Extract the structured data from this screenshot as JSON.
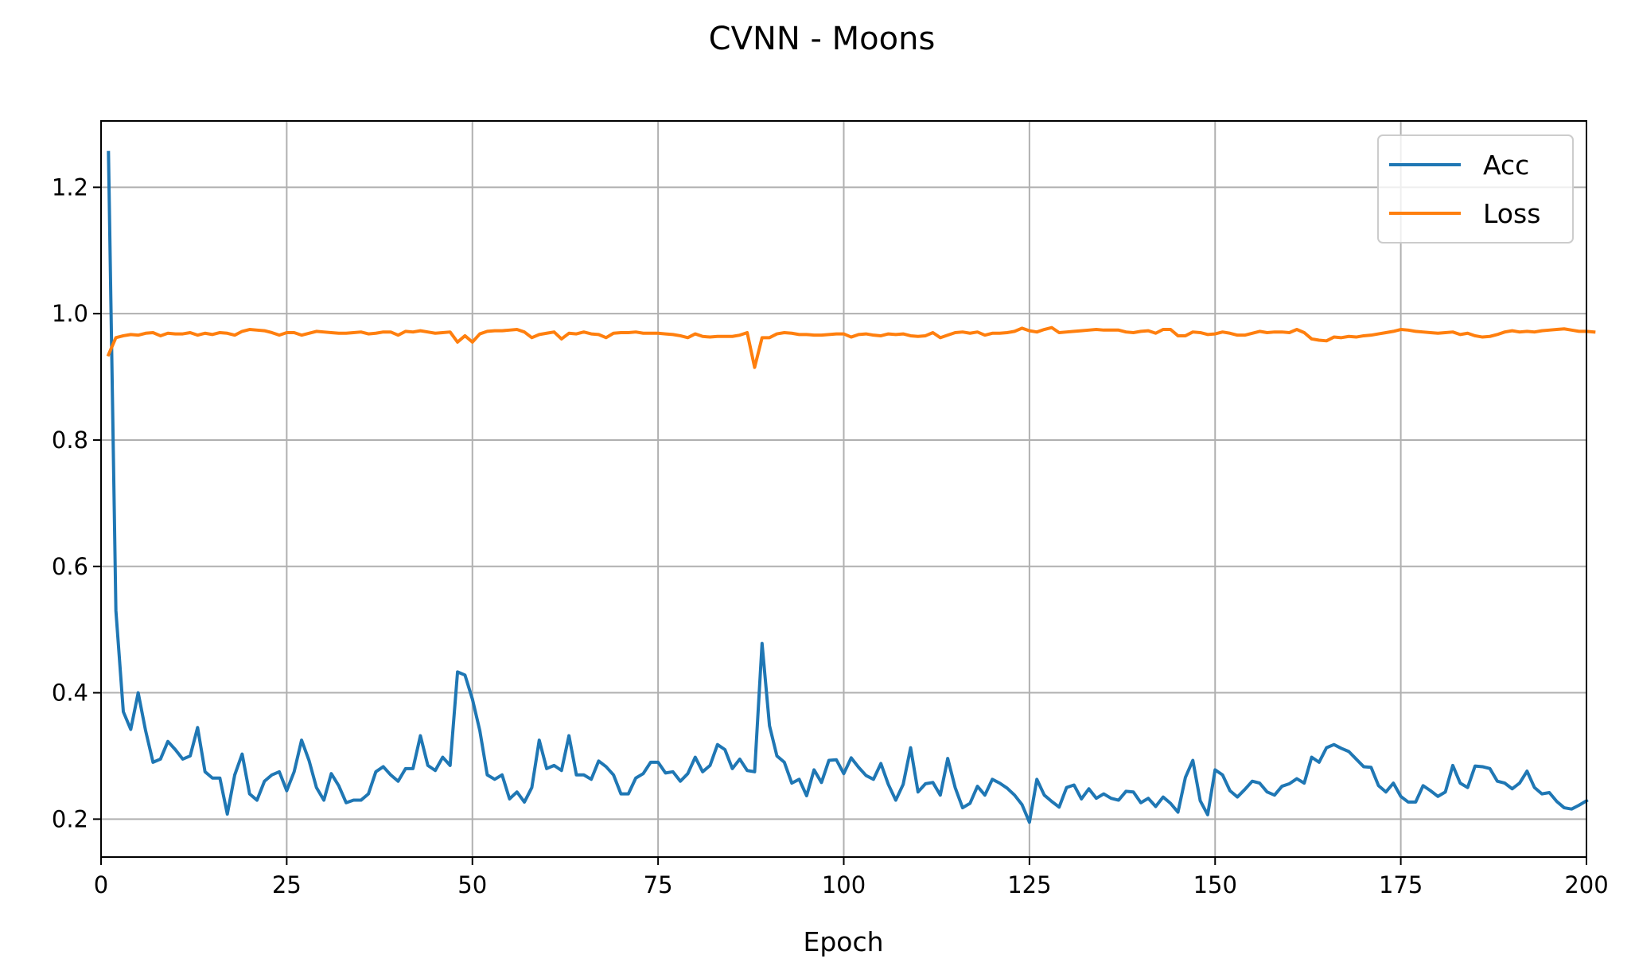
{
  "chart_data": {
    "type": "line",
    "title": "CVNN - Moons",
    "xlabel": "Epoch",
    "ylabel": "",
    "xlim": [
      0,
      200
    ],
    "ylim": [
      0.14,
      1.305
    ],
    "xticks": [
      0,
      25,
      50,
      75,
      100,
      125,
      150,
      175,
      200
    ],
    "yticks": [
      0.2,
      0.4,
      0.6,
      0.8,
      1.0,
      1.2
    ],
    "ytick_labels": [
      "0.2",
      "0.4",
      "0.6",
      "0.8",
      "1.0",
      "1.2"
    ],
    "grid": true,
    "legend_position": "top-right",
    "series": [
      {
        "name": "Acc",
        "color": "#1f77b4",
        "x_start": 1,
        "values": [
          1.255,
          0.53,
          0.37,
          0.342,
          0.4,
          0.34,
          0.29,
          0.295,
          0.323,
          0.31,
          0.295,
          0.3,
          0.345,
          0.275,
          0.265,
          0.265,
          0.208,
          0.27,
          0.303,
          0.24,
          0.23,
          0.26,
          0.27,
          0.275,
          0.245,
          0.275,
          0.325,
          0.293,
          0.25,
          0.23,
          0.272,
          0.253,
          0.226,
          0.23,
          0.23,
          0.24,
          0.275,
          0.283,
          0.27,
          0.26,
          0.28,
          0.28,
          0.332,
          0.285,
          0.277,
          0.298,
          0.285,
          0.433,
          0.428,
          0.39,
          0.34,
          0.27,
          0.263,
          0.27,
          0.232,
          0.243,
          0.227,
          0.25,
          0.325,
          0.28,
          0.285,
          0.277,
          0.332,
          0.27,
          0.27,
          0.263,
          0.292,
          0.283,
          0.27,
          0.24,
          0.24,
          0.265,
          0.272,
          0.29,
          0.29,
          0.273,
          0.275,
          0.26,
          0.272,
          0.298,
          0.275,
          0.285,
          0.318,
          0.31,
          0.28,
          0.295,
          0.277,
          0.275,
          0.478,
          0.348,
          0.3,
          0.29,
          0.257,
          0.263,
          0.237,
          0.278,
          0.258,
          0.293,
          0.294,
          0.272,
          0.297,
          0.282,
          0.269,
          0.263,
          0.288,
          0.255,
          0.23,
          0.255,
          0.313,
          0.243,
          0.256,
          0.258,
          0.238,
          0.296,
          0.25,
          0.218,
          0.225,
          0.252,
          0.238,
          0.263,
          0.257,
          0.249,
          0.238,
          0.223,
          0.195,
          0.263,
          0.238,
          0.228,
          0.219,
          0.25,
          0.254,
          0.232,
          0.248,
          0.233,
          0.24,
          0.233,
          0.23,
          0.244,
          0.243,
          0.226,
          0.233,
          0.22,
          0.235,
          0.225,
          0.211,
          0.266,
          0.293,
          0.229,
          0.207,
          0.278,
          0.27,
          0.245,
          0.235,
          0.247,
          0.26,
          0.257,
          0.243,
          0.238,
          0.252,
          0.256,
          0.264,
          0.257,
          0.298,
          0.29,
          0.313,
          0.318,
          0.312,
          0.307,
          0.295,
          0.283,
          0.282,
          0.253,
          0.243,
          0.257,
          0.236,
          0.227,
          0.227,
          0.253,
          0.245,
          0.236,
          0.243,
          0.285,
          0.257,
          0.25,
          0.284,
          0.283,
          0.28,
          0.26,
          0.257,
          0.248,
          0.257,
          0.276,
          0.25,
          0.24,
          0.242,
          0.228,
          0.218,
          0.216,
          0.222,
          0.229
        ]
      },
      {
        "name": "Loss",
        "color": "#ff7f0e",
        "x_start": 1,
        "values": [
          0.935,
          0.962,
          0.965,
          0.967,
          0.966,
          0.969,
          0.97,
          0.965,
          0.969,
          0.968,
          0.968,
          0.97,
          0.966,
          0.969,
          0.967,
          0.97,
          0.969,
          0.966,
          0.972,
          0.975,
          0.974,
          0.973,
          0.97,
          0.966,
          0.97,
          0.97,
          0.966,
          0.969,
          0.972,
          0.971,
          0.97,
          0.969,
          0.969,
          0.97,
          0.971,
          0.968,
          0.969,
          0.971,
          0.971,
          0.966,
          0.972,
          0.971,
          0.973,
          0.971,
          0.969,
          0.97,
          0.971,
          0.955,
          0.965,
          0.955,
          0.968,
          0.972,
          0.973,
          0.973,
          0.974,
          0.975,
          0.971,
          0.962,
          0.967,
          0.969,
          0.971,
          0.96,
          0.969,
          0.968,
          0.971,
          0.968,
          0.967,
          0.962,
          0.969,
          0.97,
          0.97,
          0.971,
          0.969,
          0.969,
          0.969,
          0.968,
          0.967,
          0.965,
          0.962,
          0.968,
          0.964,
          0.963,
          0.964,
          0.964,
          0.964,
          0.966,
          0.97,
          0.915,
          0.962,
          0.962,
          0.968,
          0.97,
          0.969,
          0.967,
          0.967,
          0.966,
          0.966,
          0.967,
          0.968,
          0.968,
          0.963,
          0.967,
          0.968,
          0.966,
          0.965,
          0.968,
          0.967,
          0.968,
          0.965,
          0.964,
          0.965,
          0.97,
          0.962,
          0.966,
          0.97,
          0.971,
          0.969,
          0.971,
          0.966,
          0.969,
          0.969,
          0.97,
          0.972,
          0.977,
          0.973,
          0.971,
          0.975,
          0.978,
          0.97,
          0.971,
          0.972,
          0.973,
          0.974,
          0.975,
          0.974,
          0.974,
          0.974,
          0.971,
          0.97,
          0.972,
          0.973,
          0.969,
          0.975,
          0.975,
          0.965,
          0.965,
          0.971,
          0.97,
          0.967,
          0.968,
          0.971,
          0.969,
          0.966,
          0.966,
          0.969,
          0.972,
          0.97,
          0.971,
          0.971,
          0.97,
          0.975,
          0.97,
          0.96,
          0.958,
          0.957,
          0.963,
          0.962,
          0.964,
          0.963,
          0.965,
          0.966,
          0.968,
          0.97,
          0.972,
          0.975,
          0.974,
          0.972,
          0.971,
          0.97,
          0.969,
          0.97,
          0.971,
          0.967,
          0.969,
          0.965,
          0.963,
          0.964,
          0.967,
          0.971,
          0.973,
          0.971,
          0.972,
          0.971,
          0.973,
          0.974,
          0.975,
          0.976,
          0.974,
          0.972,
          0.972,
          0.971
        ]
      }
    ]
  }
}
